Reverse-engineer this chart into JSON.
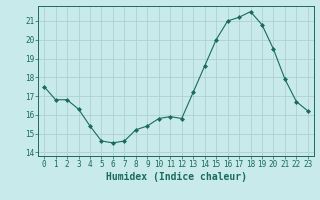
{
  "x": [
    0,
    1,
    2,
    3,
    4,
    5,
    6,
    7,
    8,
    9,
    10,
    11,
    12,
    13,
    14,
    15,
    16,
    17,
    18,
    19,
    20,
    21,
    22,
    23
  ],
  "y": [
    17.5,
    16.8,
    16.8,
    16.3,
    15.4,
    14.6,
    14.5,
    14.6,
    15.2,
    15.4,
    15.8,
    15.9,
    15.8,
    17.2,
    18.6,
    20.0,
    21.0,
    21.2,
    21.5,
    20.8,
    19.5,
    17.9,
    16.7,
    16.2
  ],
  "xlabel": "Humidex (Indice chaleur)",
  "xlim": [
    -0.5,
    23.5
  ],
  "ylim": [
    13.8,
    21.8
  ],
  "yticks": [
    14,
    15,
    16,
    17,
    18,
    19,
    20,
    21
  ],
  "xticks": [
    0,
    1,
    2,
    3,
    4,
    5,
    6,
    7,
    8,
    9,
    10,
    11,
    12,
    13,
    14,
    15,
    16,
    17,
    18,
    19,
    20,
    21,
    22,
    23
  ],
  "line_color": "#1a6b5a",
  "marker_color": "#1a6b5a",
  "bg_color": "#c8eaea",
  "grid_major_color": "#b0d0d0",
  "grid_minor_color": "#c0dcdc",
  "tick_fontsize": 5.5,
  "label_fontsize": 7.0
}
